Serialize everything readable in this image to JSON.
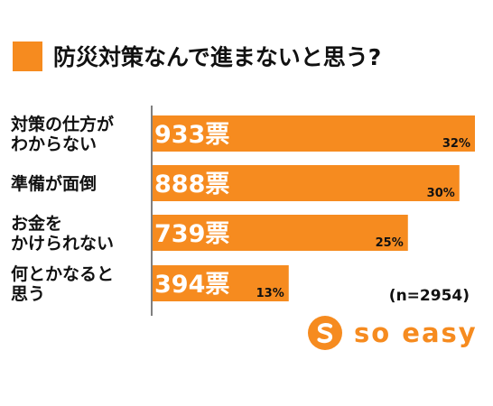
{
  "colors": {
    "accent": "#F68B1F",
    "axis": "#555555",
    "text": "#111111",
    "bar_text": "#ffffff"
  },
  "title": "防災対策なんで進まないと思う?",
  "note": "(n=2954)",
  "logo": {
    "text": "so easy",
    "icon": "so-easy-s-icon"
  },
  "chart_data": {
    "type": "bar",
    "orientation": "horizontal",
    "title": "防災対策なんで進まないと思う?",
    "categories": [
      [
        "対策の仕方が",
        "わからない"
      ],
      [
        "準備が面倒"
      ],
      [
        "お金を",
        "かけられない"
      ],
      [
        "何とかなると",
        "思う"
      ]
    ],
    "values": [
      933,
      888,
      739,
      394
    ],
    "value_labels": [
      "933票",
      "888票",
      "739票",
      "394票"
    ],
    "percent_labels": [
      "32%",
      "30%",
      "25%",
      "13%"
    ],
    "n_label": "(n=2954)",
    "xlim": [
      0,
      933
    ],
    "grid": false
  }
}
